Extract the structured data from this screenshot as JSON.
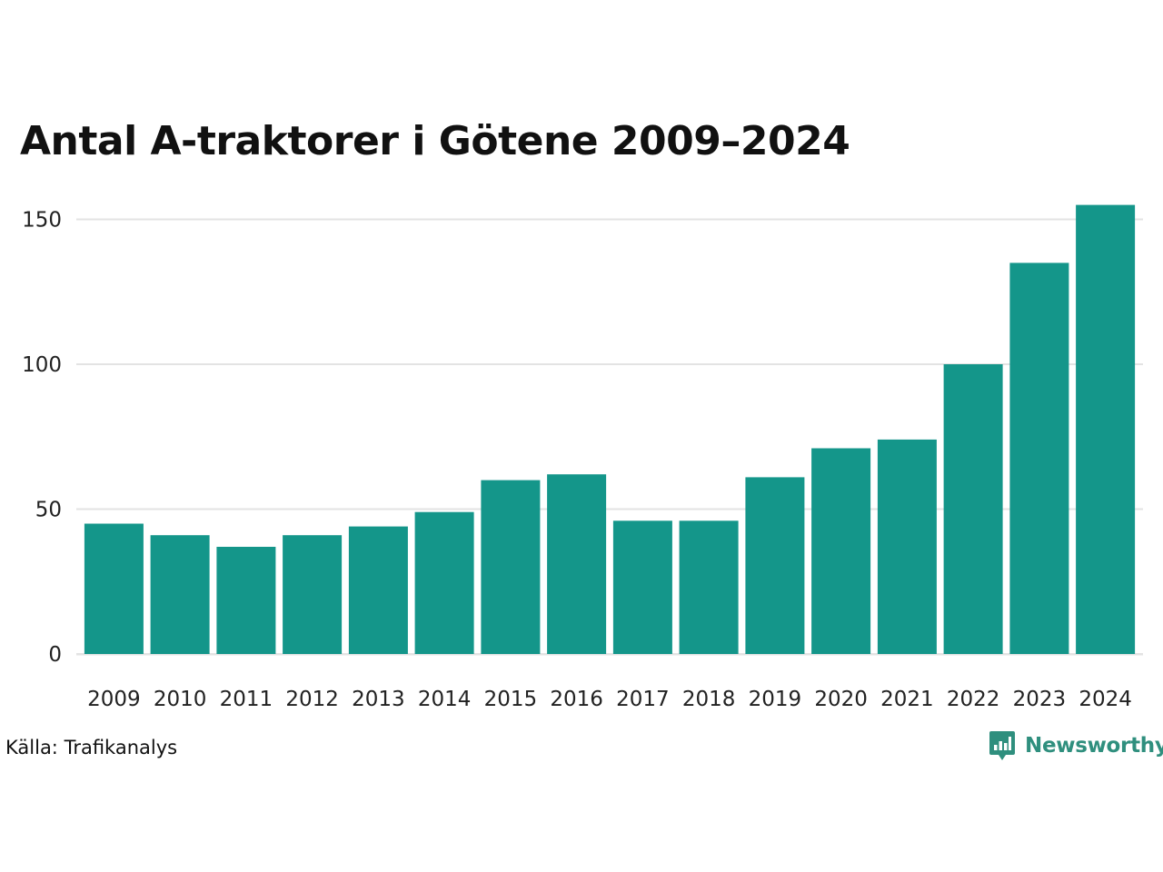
{
  "colors": {
    "bar": "#14968a",
    "grid": "#e3e3e3",
    "brand": "#2f8f7e"
  },
  "icons": {
    "brand_logo": "newsworthy-logo-icon"
  },
  "source": {
    "label": "Källa:",
    "value": "Trafikanalys"
  },
  "brand": {
    "name": "Newsworthy"
  },
  "chart_data": {
    "type": "bar",
    "title": "Antal A-traktorer i Götene 2009–2024",
    "xlabel": "",
    "ylabel": "",
    "categories": [
      "2009",
      "2010",
      "2011",
      "2012",
      "2013",
      "2014",
      "2015",
      "2016",
      "2017",
      "2018",
      "2019",
      "2020",
      "2021",
      "2022",
      "2023",
      "2024"
    ],
    "values": [
      45,
      41,
      37,
      41,
      44,
      49,
      60,
      62,
      46,
      46,
      61,
      71,
      74,
      100,
      135,
      155
    ],
    "ylim": [
      0,
      155
    ],
    "yticks": [
      0,
      50,
      100,
      150
    ],
    "grid": true,
    "legend": "none"
  }
}
